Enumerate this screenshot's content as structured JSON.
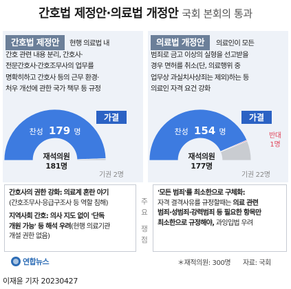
{
  "title": {
    "main": "간호법 제정안·의료법 개정안",
    "sub": "국회 본회의 통과"
  },
  "chart_data": [
    {
      "type": "pie",
      "shape": "half-donut",
      "title": "간호법 제정안",
      "result": "가결",
      "total_present": {
        "label": "재석의원",
        "value": "181명"
      },
      "slices": [
        {
          "name": "찬성",
          "value": 179,
          "label": "179명",
          "color": "#3d7be0"
        },
        {
          "name": "기권",
          "value": 2,
          "label": "2명",
          "color": "#c9ccd1"
        }
      ]
    },
    {
      "type": "pie",
      "shape": "half-donut",
      "title": "의료법 개정안",
      "result": "가결",
      "total_present": {
        "label": "재석의원",
        "value": "177명"
      },
      "slices": [
        {
          "name": "찬성",
          "value": 154,
          "label": "154명",
          "color": "#3d7be0"
        },
        {
          "name": "반대",
          "value": 1,
          "label": "1명",
          "color": "#e0455a"
        },
        {
          "name": "기권",
          "value": 22,
          "label": "22명",
          "color": "#c9ccd1"
        }
      ]
    }
  ],
  "left_panel": {
    "tag": "간호법 제정안",
    "desc": [
      "현행 의료법 내",
      "간호 관련 내용 분리, 간호사·",
      "전문간호사·간호조무사의 업무를",
      "명확히하고 간호사 등의 근무 환경·",
      "처우 개선에 관한 국가 책무 등 규정"
    ],
    "result": "가결",
    "approve_label": "찬성",
    "approve_value": "179",
    "approve_unit": "명",
    "present_label": "재석의원",
    "present_value": "181명",
    "abstain": "기권 2명"
  },
  "right_panel": {
    "tag": "의료법 개정안",
    "desc": [
      "의료인이 모든",
      "범죄로 금고 이상의 실형을 선고받을",
      "경우 면허를 취소(단, 의료행위 중",
      "업무상 과실치사상죄는 제외)하는 등",
      "의료인 자격 요건 강화"
    ],
    "result": "가결",
    "approve_label": "찬성",
    "approve_value": "154",
    "approve_unit": "명",
    "oppose": "반대",
    "oppose_value": "1명",
    "present_label": "재석의원",
    "present_value": "177명",
    "abstain": "기권 22명"
  },
  "bottom": {
    "mid_label": [
      "주",
      "요",
      "",
      "쟁",
      "점"
    ],
    "left": {
      "p1_bold": "간호사의 권한 강화: 의료계 혼란 야기",
      "p1_line2": "(간호조무사·응급구조사 등 역할 침해)",
      "p2_bold_line1": "지역사회 간호: 의사 지도 없이 '단독",
      "p2_bold_line2": "개원 가능'",
      "p2_line2_rest": " 등 해석 우려",
      "p2_line2_tail": "(현행 의료기관",
      "p2_line3": "개설 권한 없음)"
    },
    "right": {
      "p1_bold": "'모든 범죄'를 최소한으로 구체화:",
      "p1_line2_a": "자격 결격사유를 규정할때는 ",
      "p1_line2_b": "의료 관련",
      "p1_line3": "범죄·성범죄·강력범죄 등 필요한 항목만",
      "p1_line4_a": "최소한으로 규정해야,",
      "p1_line4_b": " 과잉입법 우려"
    }
  },
  "footer": {
    "logo": "연합뉴스",
    "note": "＊재적의원: 300명",
    "source": "자료: 국회",
    "byline": "이재윤 기자  20230427"
  }
}
